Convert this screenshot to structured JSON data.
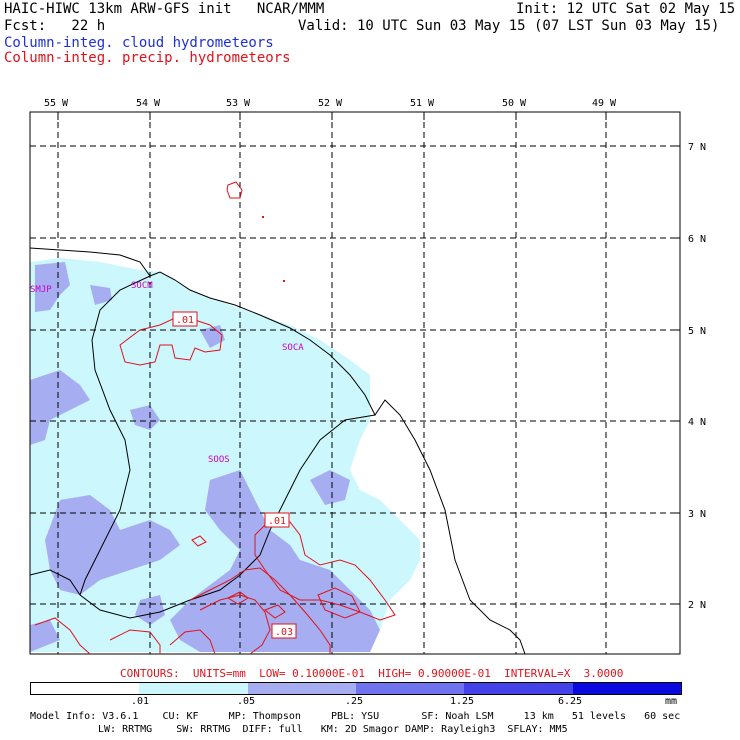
{
  "header": {
    "left_line1": "HAIC-HIWC 13km ARW-GFS init   NCAR/MMM",
    "left_line2": "Fcst:   22 h",
    "right_line1": "Init: 12 UTC Sat 02 May 15",
    "right_line2": "Valid: 10 UTC Sun 03 May 15 (07 LST Sun 03 May 15)",
    "legend_cloud": "Column-integ. cloud hydrometeors",
    "legend_precip": "Column-integ. precip. hydrometeors"
  },
  "map": {
    "lon_labels": [
      "55 W",
      "54 W",
      "53 W",
      "52 W",
      "51 W",
      "50 W",
      "49 W"
    ],
    "lat_labels": [
      "7 N",
      "6 N",
      "5 N",
      "4 N",
      "3 N",
      "2 N"
    ],
    "stations": [
      "SMJP",
      "SOCM",
      "SOCA",
      "SOOS"
    ],
    "contour_labels": [
      ".01",
      ".01",
      ".03"
    ]
  },
  "contours_info": "CONTOURS:  UNITS=mm  LOW= 0.10000E-01  HIGH= 0.90000E-01  INTERVAL=X  3.0000",
  "colorbar": {
    "ticks": [
      ".01",
      ".05",
      ".25",
      "1.25",
      "6.25"
    ],
    "unit": "mm",
    "colors": [
      "#ffffff",
      "#ccf7fc",
      "#a6aef1",
      "#6f73ee",
      "#4343e9",
      "#0a0ae0"
    ]
  },
  "footer": {
    "line1": "Model Info: V3.6.1    CU: KF     MP: Thompson     PBL: YSU       SF: Noah LSM     13 km   51 levels   60 sec",
    "line2": "LW: RRTMG    SW: RRTMG  DIFF: full   KM: 2D Smagor DAMP: Rayleigh3  SFLAY: MM5"
  }
}
